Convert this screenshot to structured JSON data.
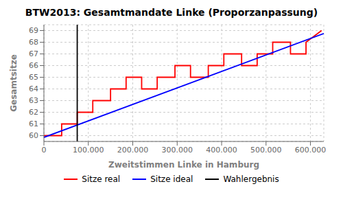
{
  "chart_data": {
    "type": "line",
    "title": "BTW2013: Gesamtmandate Linke (Proporzanpassung)",
    "xlabel": "Zweitstimmen Linke in Hamburg",
    "ylabel": "Gesamtsitze",
    "xlim": [
      0,
      630000
    ],
    "xticks": [
      0,
      {
        "value": 100000,
        "label": "100.000"
      },
      {
        "value": 200000,
        "label": "200.000"
      },
      {
        "value": 300000,
        "label": "300.000"
      },
      {
        "value": 400000,
        "label": "400.000"
      },
      {
        "value": 500000,
        "label": "500.000"
      },
      {
        "value": 600000,
        "label": "600.000"
      }
    ],
    "ylim": [
      59.5,
      69.5
    ],
    "yticks": [
      60,
      61,
      62,
      63,
      64,
      65,
      66,
      67,
      68,
      69
    ],
    "grid": true,
    "series": [
      {
        "name": "Sitze real",
        "color": "red",
        "x": [
          0,
          40000,
          40000,
          75000,
          75000,
          110000,
          110000,
          150000,
          150000,
          185000,
          185000,
          220000,
          220000,
          255000,
          255000,
          295000,
          295000,
          330000,
          330000,
          370000,
          370000,
          405000,
          405000,
          445000,
          445000,
          480000,
          480000,
          515000,
          515000,
          555000,
          555000,
          590000,
          590000,
          625000
        ],
        "values": [
          60,
          60,
          61,
          61,
          62,
          62,
          63,
          63,
          64,
          64,
          65,
          65,
          64,
          64,
          65,
          65,
          66,
          66,
          65,
          65,
          66,
          66,
          67,
          67,
          66,
          66,
          67,
          67,
          68,
          68,
          67,
          67,
          68,
          69
        ]
      },
      {
        "name": "Sitze ideal",
        "color": "blue",
        "x": [
          0,
          630000
        ],
        "values": [
          59.85,
          68.75
        ]
      },
      {
        "name": "Wahlergebnis",
        "type": "vline",
        "color": "black",
        "x": 75000
      }
    ]
  }
}
